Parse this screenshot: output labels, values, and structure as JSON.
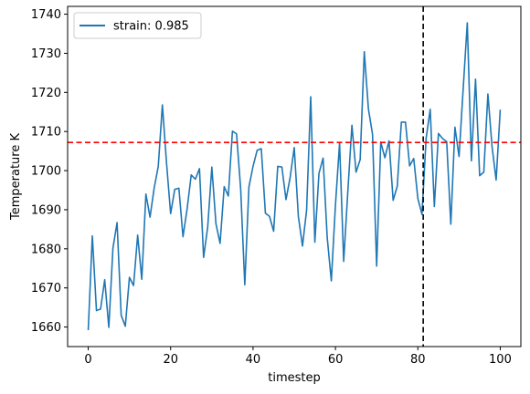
{
  "chart_data": {
    "type": "line",
    "xlabel": "timestep",
    "ylabel": "Temperature K",
    "xlim": [
      -5,
      105
    ],
    "ylim": [
      1655,
      1742
    ],
    "xticks": [
      0,
      20,
      40,
      60,
      80,
      100
    ],
    "yticks": [
      1660,
      1670,
      1680,
      1690,
      1700,
      1710,
      1720,
      1730,
      1740
    ],
    "legend_position": "upper-left",
    "series": [
      {
        "name": "strain: 0.985",
        "color": "#1f77b4",
        "x": [
          0,
          1,
          2,
          3,
          4,
          5,
          6,
          7,
          8,
          9,
          10,
          11,
          12,
          13,
          14,
          15,
          16,
          17,
          18,
          19,
          20,
          21,
          22,
          23,
          24,
          25,
          26,
          27,
          28,
          29,
          30,
          31,
          32,
          33,
          34,
          35,
          36,
          37,
          38,
          39,
          40,
          41,
          42,
          43,
          44,
          45,
          46,
          47,
          48,
          49,
          50,
          51,
          52,
          53,
          54,
          55,
          56,
          57,
          58,
          59,
          60,
          61,
          62,
          63,
          64,
          65,
          66,
          67,
          68,
          69,
          70,
          71,
          72,
          73,
          74,
          75,
          76,
          77,
          78,
          79,
          80,
          81,
          82,
          83,
          84,
          85,
          86,
          87,
          88,
          89,
          90,
          91,
          92,
          93,
          94,
          95,
          96,
          97,
          98,
          99,
          100
        ],
        "y": [
          1659.2,
          1683.3,
          1664.2,
          1664.6,
          1672.1,
          1659.9,
          1680.2,
          1686.7,
          1663.0,
          1660.2,
          1672.7,
          1670.6,
          1683.5,
          1672.2,
          1694.0,
          1688.1,
          1695.5,
          1701.1,
          1716.8,
          1702.0,
          1689.0,
          1695.2,
          1695.5,
          1683.1,
          1690.2,
          1698.9,
          1697.8,
          1700.5,
          1677.8,
          1685.6,
          1700.9,
          1686.4,
          1681.4,
          1695.9,
          1693.5,
          1710.1,
          1709.4,
          1695.3,
          1670.8,
          1695.8,
          1701.1,
          1705.2,
          1705.6,
          1689.1,
          1688.3,
          1684.5,
          1701.1,
          1700.9,
          1692.6,
          1698.2,
          1705.9,
          1688.3,
          1680.7,
          1689.9,
          1718.9,
          1681.7,
          1699.3,
          1703.2,
          1682.9,
          1671.8,
          1691.2,
          1707.0,
          1676.8,
          1694.6,
          1711.6,
          1699.6,
          1702.8,
          1730.4,
          1715.8,
          1709.3,
          1675.6,
          1707.3,
          1703.3,
          1707.6,
          1692.4,
          1696.0,
          1712.4,
          1712.4,
          1701.2,
          1703.1,
          1692.9,
          1688.8,
          1708.2,
          1715.7,
          1690.8,
          1709.5,
          1708.2,
          1707.4,
          1686.3,
          1711.1,
          1703.6,
          1720.9,
          1737.8,
          1702.5,
          1723.4,
          1698.7,
          1699.6,
          1719.6,
          1706.2,
          1697.6,
          1715.6
        ]
      }
    ],
    "reference_lines": [
      {
        "orientation": "horizontal",
        "value": 1707.2,
        "color": "#ff0000",
        "style": "dashed"
      },
      {
        "orientation": "vertical",
        "value": 81.3,
        "color": "#000000",
        "style": "dashed"
      }
    ]
  }
}
